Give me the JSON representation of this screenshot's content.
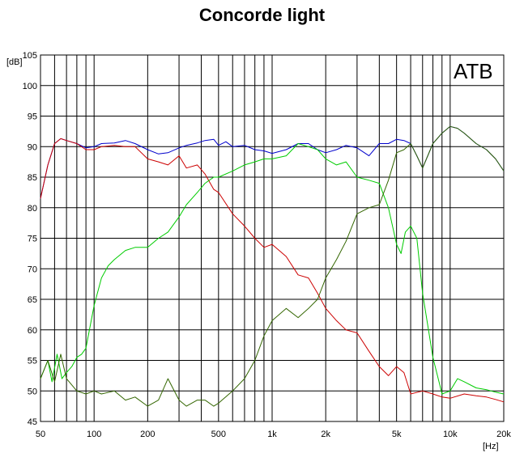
{
  "chart_data": {
    "type": "line",
    "title": "Concorde light",
    "badge": "ATB",
    "xlabel": "[Hz]",
    "ylabel": "[dB]",
    "xscale": "log",
    "xlim": [
      50,
      20000
    ],
    "ylim": [
      45,
      105
    ],
    "grid": true,
    "x_ticks": [
      {
        "value": 50,
        "label": "50"
      },
      {
        "value": 100,
        "label": "100"
      },
      {
        "value": 200,
        "label": "200"
      },
      {
        "value": 500,
        "label": "500"
      },
      {
        "value": 1000,
        "label": "1k"
      },
      {
        "value": 2000,
        "label": "2k"
      },
      {
        "value": 5000,
        "label": "5k"
      },
      {
        "value": 10000,
        "label": "10k"
      },
      {
        "value": 20000,
        "label": "20k"
      }
    ],
    "y_ticks": [
      {
        "value": 45,
        "label": "45"
      },
      {
        "value": 50,
        "label": "50"
      },
      {
        "value": 55,
        "label": "55"
      },
      {
        "value": 60,
        "label": "60"
      },
      {
        "value": 65,
        "label": "65"
      },
      {
        "value": 70,
        "label": "70"
      },
      {
        "value": 75,
        "label": "75"
      },
      {
        "value": 80,
        "label": "80"
      },
      {
        "value": 85,
        "label": "85"
      },
      {
        "value": 90,
        "label": "90"
      },
      {
        "value": 95,
        "label": "95"
      },
      {
        "value": 100,
        "label": "100"
      },
      {
        "value": 105,
        "label": "105"
      }
    ],
    "series": [
      {
        "color": "#0000cc",
        "x": [
          50,
          55,
          60,
          65,
          70,
          80,
          90,
          100,
          110,
          130,
          150,
          170,
          200,
          230,
          260,
          300,
          330,
          380,
          420,
          470,
          500,
          550,
          600,
          700,
          800,
          900,
          1000,
          1200,
          1400,
          1600,
          1800,
          2000,
          2300,
          2600,
          3000,
          3500,
          4000,
          4500,
          5000,
          5500,
          6000,
          6500,
          7000,
          8000,
          9000,
          10000,
          11000,
          12000,
          14000,
          16000,
          18000,
          20000
        ],
        "y": [
          81.5,
          87,
          90.5,
          91.3,
          91,
          90.5,
          89.8,
          90,
          90.5,
          90.6,
          91,
          90.5,
          89.5,
          88.8,
          89,
          89.8,
          90.2,
          90.6,
          91,
          91.2,
          90.2,
          90.8,
          90,
          90.2,
          89.5,
          89.3,
          88.9,
          89.5,
          90.5,
          90.5,
          89.5,
          89,
          89.5,
          90.2,
          89.8,
          88.5,
          90.5,
          90.5,
          91.2,
          91,
          90.5,
          88.5,
          86.5,
          90.5,
          92.2,
          93.3,
          93,
          92.2,
          90.5,
          89.5,
          88,
          86
        ]
      },
      {
        "color": "#cc0000",
        "x": [
          50,
          55,
          60,
          65,
          70,
          80,
          90,
          100,
          110,
          130,
          150,
          170,
          200,
          230,
          260,
          300,
          330,
          380,
          420,
          470,
          500,
          600,
          700,
          800,
          900,
          1000,
          1200,
          1400,
          1600,
          1800,
          2000,
          2300,
          2600,
          3000,
          3500,
          4000,
          4500,
          5000,
          5500,
          6000,
          7000,
          8000,
          9000,
          10000,
          12000,
          14000,
          16000,
          18000,
          20000
        ],
        "y": [
          81.5,
          87,
          90.5,
          91.3,
          91,
          90.5,
          89.5,
          89.5,
          90,
          90.2,
          90,
          90,
          88,
          87.5,
          87,
          88.5,
          86.5,
          87,
          85.5,
          83,
          82.5,
          79,
          77,
          75,
          73.5,
          74,
          72,
          69,
          68.5,
          66,
          63.5,
          61.5,
          60,
          59.5,
          56.5,
          54,
          52.5,
          54,
          53,
          49.5,
          50,
          49.5,
          49,
          48.8,
          49.5,
          49.2,
          49,
          48.6,
          48.2
        ]
      },
      {
        "color": "#00cc00",
        "x": [
          50,
          55,
          58,
          62,
          66,
          70,
          75,
          80,
          85,
          90,
          100,
          110,
          120,
          130,
          150,
          170,
          200,
          230,
          260,
          300,
          330,
          380,
          420,
          470,
          500,
          600,
          700,
          800,
          900,
          1000,
          1200,
          1400,
          1600,
          1800,
          2000,
          2300,
          2600,
          3000,
          3500,
          4000,
          4500,
          5000,
          5300,
          5600,
          6000,
          6500,
          7000,
          8000,
          9000,
          10000,
          11000,
          12000,
          14000,
          16000,
          18000,
          20000
        ],
        "y": [
          52,
          55,
          51.5,
          56,
          52,
          53,
          54,
          55.5,
          56,
          57,
          64,
          68.5,
          70.5,
          71.5,
          73,
          73.5,
          73.5,
          75,
          76,
          78.5,
          80.5,
          82.5,
          84,
          85,
          85,
          86,
          87,
          87.5,
          88,
          88,
          88.5,
          90.5,
          90,
          89.5,
          88,
          87,
          87.5,
          85,
          84.5,
          84,
          80,
          74,
          72.5,
          76,
          77,
          75,
          66,
          55.5,
          49.5,
          50,
          52,
          51.5,
          50.5,
          50.2,
          49.8,
          49.5
        ]
      },
      {
        "color": "#336600",
        "x": [
          50,
          55,
          60,
          65,
          70,
          80,
          90,
          100,
          110,
          130,
          150,
          170,
          200,
          230,
          260,
          300,
          330,
          380,
          420,
          470,
          500,
          600,
          700,
          800,
          900,
          1000,
          1200,
          1400,
          1600,
          1800,
          2000,
          2300,
          2600,
          3000,
          3500,
          4000,
          4500,
          5000,
          5500,
          6000,
          6500,
          7000,
          8000,
          9000,
          10000,
          11000,
          12000,
          14000,
          16000,
          18000,
          20000
        ],
        "y": [
          52,
          55,
          51.5,
          56,
          52,
          50,
          49.5,
          50,
          49.5,
          50,
          48.5,
          49,
          47.5,
          48.5,
          52,
          48.5,
          47.5,
          48.5,
          48.5,
          47.5,
          48,
          50,
          52,
          55,
          59,
          61.5,
          63.5,
          62,
          63.5,
          65,
          68.5,
          71.5,
          74.5,
          79,
          80,
          80.5,
          84.5,
          89,
          89.5,
          90.5,
          88.5,
          86.5,
          90.5,
          92.2,
          93.3,
          93,
          92.2,
          90.5,
          89.5,
          88,
          86
        ]
      }
    ]
  }
}
